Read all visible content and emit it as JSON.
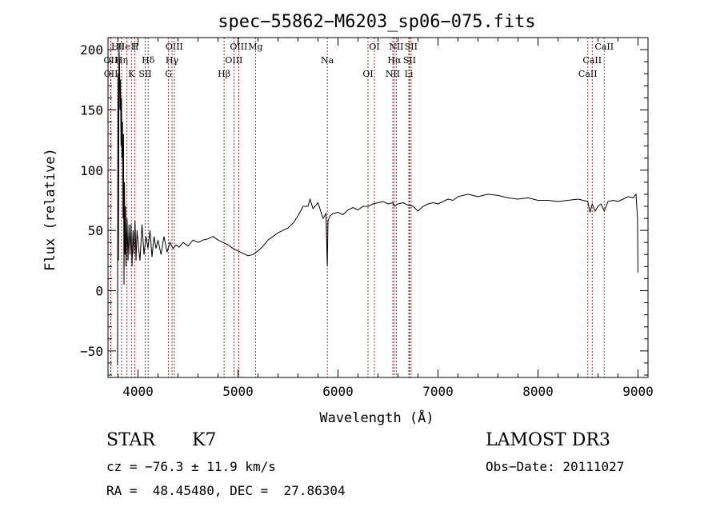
{
  "chart_data": {
    "type": "line",
    "title": "spec−55862−M6203_sp06−075.fits",
    "xlabel": "Wavelength (Å)",
    "ylabel": "Flux (relative)",
    "xlim": [
      3700,
      9100
    ],
    "ylim": [
      -72,
      210
    ],
    "xticks": [
      4000,
      5000,
      6000,
      7000,
      8000,
      9000
    ],
    "yticks": [
      -50,
      0,
      50,
      100,
      150,
      200
    ],
    "xtick_labels": [
      "4000",
      "5000",
      "6000",
      "7000",
      "8000",
      "9000"
    ],
    "ytick_labels": [
      "−50",
      "0",
      "50",
      "100",
      "150",
      "200"
    ],
    "grid": false,
    "series": [
      {
        "name": "flux",
        "x": [
          3795,
          3800,
          3805,
          3810,
          3815,
          3820,
          3825,
          3830,
          3835,
          3840,
          3845,
          3850,
          3855,
          3860,
          3865,
          3870,
          3875,
          3880,
          3890,
          3900,
          3910,
          3920,
          3930,
          3940,
          3950,
          3960,
          3970,
          3980,
          3990,
          4000,
          4020,
          4040,
          4060,
          4080,
          4100,
          4120,
          4140,
          4160,
          4180,
          4200,
          4230,
          4260,
          4290,
          4320,
          4350,
          4380,
          4410,
          4450,
          4500,
          4550,
          4600,
          4650,
          4700,
          4750,
          4800,
          4850,
          4900,
          4950,
          5000,
          5050,
          5100,
          5150,
          5180,
          5200,
          5250,
          5300,
          5350,
          5400,
          5450,
          5500,
          5550,
          5600,
          5650,
          5700,
          5720,
          5750,
          5800,
          5850,
          5880,
          5893,
          5900,
          5920,
          5950,
          6000,
          6050,
          6100,
          6150,
          6200,
          6250,
          6300,
          6350,
          6400,
          6450,
          6500,
          6550,
          6563,
          6600,
          6650,
          6700,
          6750,
          6800,
          6850,
          6900,
          6950,
          7000,
          7050,
          7100,
          7150,
          7200,
          7300,
          7400,
          7500,
          7600,
          7700,
          7800,
          7900,
          8000,
          8100,
          8200,
          8300,
          8400,
          8450,
          8498,
          8520,
          8542,
          8570,
          8600,
          8630,
          8662,
          8700,
          8750,
          8800,
          8850,
          8900,
          8950,
          8980,
          8995,
          9000
        ],
        "y": [
          -62,
          180,
          25,
          200,
          190,
          150,
          175,
          120,
          160,
          110,
          140,
          60,
          130,
          5,
          90,
          30,
          70,
          20,
          60,
          25,
          55,
          30,
          55,
          20,
          50,
          30,
          58,
          25,
          50,
          40,
          25,
          55,
          30,
          45,
          35,
          50,
          28,
          45,
          35,
          42,
          30,
          45,
          32,
          40,
          35,
          38,
          36,
          40,
          37,
          42,
          40,
          42,
          43,
          45,
          42,
          40,
          38,
          35,
          33,
          31,
          29,
          30,
          32,
          33,
          37,
          42,
          45,
          48,
          50,
          52,
          56,
          62,
          70,
          70,
          76,
          68,
          73,
          60,
          64,
          20,
          58,
          62,
          64,
          65,
          63,
          67,
          69,
          67,
          70,
          70,
          72,
          73,
          74,
          72,
          73,
          70,
          72,
          73,
          71,
          70,
          66,
          70,
          72,
          73,
          72,
          74,
          76,
          75,
          78,
          80,
          78,
          80,
          79,
          77,
          76,
          77,
          75,
          75,
          74,
          75,
          76,
          75,
          74,
          65,
          72,
          66,
          70,
          72,
          66,
          74,
          75,
          74,
          76,
          78,
          77,
          80,
          60,
          15
        ]
      }
    ],
    "line_markers": [
      {
        "name": "Hθ",
        "wavelength": 3797
      },
      {
        "name": "OII",
        "wavelength": 3727
      },
      {
        "name": "OII",
        "wavelength": 3729
      },
      {
        "name": "He I",
        "wavelength": 3889
      },
      {
        "name": "Hη",
        "wavelength": 3835
      },
      {
        "name": "K",
        "wavelength": 3934
      },
      {
        "name": "H",
        "wavelength": 3968
      },
      {
        "name": "Hδ",
        "wavelength": 4102
      },
      {
        "name": "SII",
        "wavelength": 4072
      },
      {
        "name": "OIII",
        "wavelength": 4363
      },
      {
        "name": "Hγ",
        "wavelength": 4340
      },
      {
        "name": "G",
        "wavelength": 4305
      },
      {
        "name": "OIII",
        "wavelength": 5007
      },
      {
        "name": "OIII",
        "wavelength": 4959
      },
      {
        "name": "Hβ",
        "wavelength": 4861
      },
      {
        "name": "Mg",
        "wavelength": 5175
      },
      {
        "name": "Na",
        "wavelength": 5893
      },
      {
        "name": "OI",
        "wavelength": 6300
      },
      {
        "name": "OI",
        "wavelength": 6364
      },
      {
        "name": "Hα",
        "wavelength": 6563
      },
      {
        "name": "NII",
        "wavelength": 6548
      },
      {
        "name": "NII",
        "wavelength": 6583
      },
      {
        "name": "SII",
        "wavelength": 6716
      },
      {
        "name": "Li",
        "wavelength": 6708
      },
      {
        "name": "SII",
        "wavelength": 6731
      },
      {
        "name": "CaII",
        "wavelength": 8542
      },
      {
        "name": "CaII",
        "wavelength": 8498
      },
      {
        "name": "CaII",
        "wavelength": 8662
      }
    ]
  },
  "info": {
    "object_class": "STAR",
    "subclass": "K7",
    "survey": "LAMOST DR3",
    "redshift_line": "cz = −76.3 ± 11.9 km/s",
    "obs_date": "Obs−Date: 20111027",
    "coords": "RA =  48.45480, DEC =  27.86304"
  }
}
